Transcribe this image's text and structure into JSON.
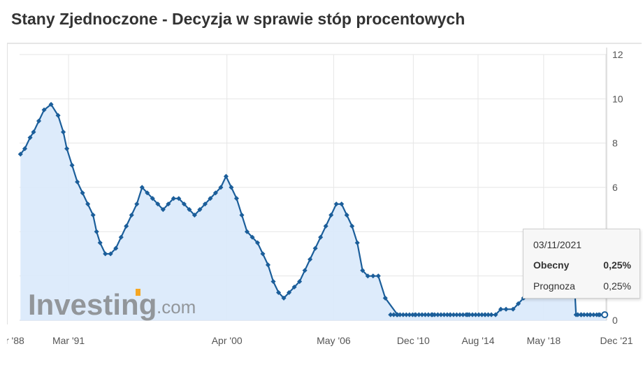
{
  "page": {
    "title": "Stany Zjednoczone - Decyzja w sprawie stóp procentowych"
  },
  "watermark": {
    "brand": "Investing",
    "suffix": ".com"
  },
  "tooltip": {
    "date": "03/11/2021",
    "current_label": "Obecny",
    "current_value": "0,25%",
    "forecast_label": "Prognoza",
    "forecast_value": "0,25%"
  },
  "colors": {
    "line": "#1b5e9a",
    "fill": "#dbeafb",
    "grid": "#e6e6e6",
    "text": "#333333"
  },
  "chart_data": {
    "type": "area",
    "title": "Stany Zjednoczone - Decyzja w sprawie stóp procentowych",
    "xlabel": "",
    "ylabel": "",
    "ylim": [
      0,
      12
    ],
    "yticks": [
      0,
      2,
      4,
      6,
      8,
      10,
      12
    ],
    "grid": true,
    "legend": "none",
    "x_ticks": [
      {
        "label": "r '88",
        "x": 1988.2
      },
      {
        "label": "Mar '91",
        "x": 1991.2
      },
      {
        "label": "Apr '00",
        "x": 2000.25
      },
      {
        "label": "May '06",
        "x": 2006.35
      },
      {
        "label": "Dec '10",
        "x": 2010.9
      },
      {
        "label": "Aug '14",
        "x": 2014.6
      },
      {
        "label": "May '18",
        "x": 2018.35
      },
      {
        "label": "Dec '21",
        "x": 2021.9
      }
    ],
    "x_domain": [
      1988.4,
      2021.95
    ],
    "series": [
      {
        "x": [
          1988.45,
          1988.7,
          1989.0,
          1989.2,
          1989.5,
          1989.8,
          1990.2,
          1990.6,
          1990.9,
          1991.1,
          1991.4,
          1991.7,
          1992.0,
          1992.3,
          1992.6,
          1992.8,
          1993.0,
          1993.3,
          1993.6,
          1993.9,
          1994.2,
          1994.5,
          1994.8,
          1995.1,
          1995.4,
          1995.7,
          1996.0,
          1996.3,
          1996.6,
          1996.9,
          1997.2,
          1997.5,
          1997.8,
          1998.1,
          1998.4,
          1998.7,
          1999.0,
          1999.3,
          1999.6,
          1999.9,
          2000.2,
          2000.5,
          2000.8,
          2001.1,
          2001.4,
          2001.7,
          2002.0,
          2002.3,
          2002.6,
          2002.9,
          2003.2,
          2003.5,
          2003.8,
          2004.1,
          2004.4,
          2004.7,
          2005.0,
          2005.3,
          2005.6,
          2005.9,
          2006.2,
          2006.5,
          2006.8,
          2007.1,
          2007.4,
          2007.7,
          2008.0,
          2008.3,
          2008.6,
          2008.9,
          2009.3,
          2010.0,
          2011.0,
          2012.0,
          2013.0,
          2014.0,
          2015.0,
          2015.6,
          2015.9,
          2016.2,
          2016.6,
          2016.9,
          2017.2,
          2017.5,
          2017.8,
          2018.1,
          2018.4,
          2018.7,
          2019.0,
          2019.3,
          2019.6,
          2019.8,
          2020.1,
          2020.2,
          2020.5,
          2021.0,
          2021.5,
          2021.84
        ],
        "y": [
          7.5,
          7.75,
          8.25,
          8.5,
          9.0,
          9.5,
          9.75,
          9.25,
          8.5,
          7.75,
          7.0,
          6.25,
          5.75,
          5.25,
          4.75,
          4.0,
          3.5,
          3.0,
          3.0,
          3.25,
          3.75,
          4.25,
          4.75,
          5.25,
          6.0,
          5.75,
          5.5,
          5.25,
          5.0,
          5.25,
          5.5,
          5.5,
          5.25,
          5.0,
          4.75,
          5.0,
          5.25,
          5.5,
          5.75,
          6.0,
          6.5,
          6.0,
          5.5,
          4.75,
          4.0,
          3.75,
          3.5,
          3.0,
          2.5,
          1.75,
          1.25,
          1.0,
          1.25,
          1.5,
          1.75,
          2.25,
          2.75,
          3.25,
          3.75,
          4.25,
          4.75,
          5.25,
          5.25,
          4.75,
          4.25,
          3.5,
          2.25,
          2.0,
          2.0,
          2.0,
          1.0,
          0.25,
          0.25,
          0.25,
          0.25,
          0.25,
          0.25,
          0.25,
          0.5,
          0.5,
          0.5,
          0.75,
          1.0,
          1.25,
          1.5,
          1.5,
          1.75,
          2.0,
          2.25,
          2.5,
          2.5,
          2.25,
          1.75,
          0.25,
          0.25,
          0.25,
          0.25,
          0.25
        ]
      }
    ]
  }
}
